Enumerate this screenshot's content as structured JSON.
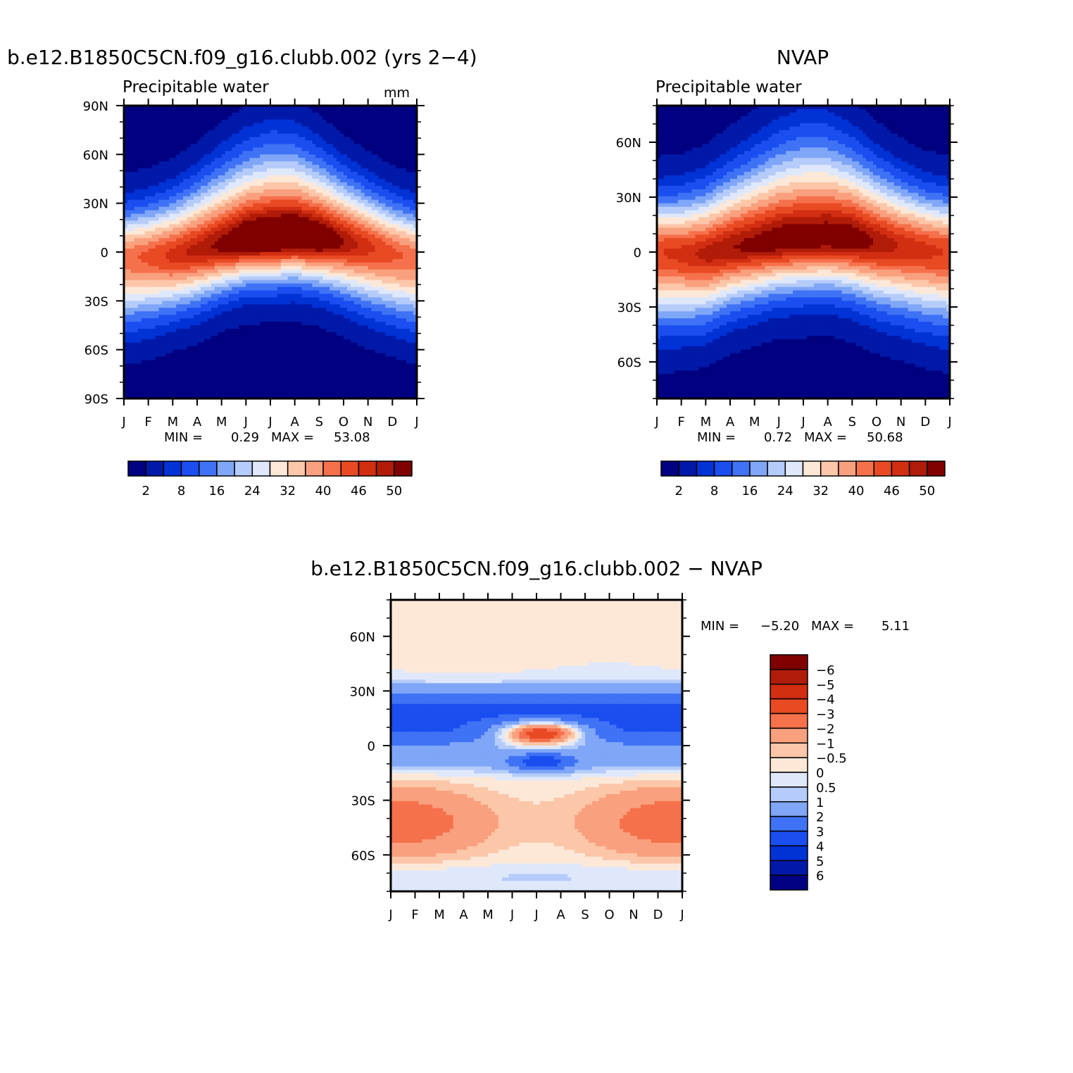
{
  "colors": {
    "precip_levels": [
      "#000080",
      "#0019a8",
      "#0032d6",
      "#1a4ef0",
      "#3f72f5",
      "#7fa6f7",
      "#b5ccfa",
      "#dfe8fb",
      "#fde8d8",
      "#fcc6a8",
      "#f9a07e",
      "#f5714c",
      "#e84a23",
      "#d22e12",
      "#b01c08",
      "#800000"
    ],
    "diff_levels": [
      "#000080",
      "#0019a8",
      "#0032d6",
      "#1a4ef0",
      "#3f72f5",
      "#7fa6f7",
      "#b5ccfa",
      "#dfe8fb",
      "#fde8d8",
      "#fcc6a8",
      "#f9a07e",
      "#f5714c",
      "#e84a23",
      "#d22e12",
      "#b01c08",
      "#800000"
    ]
  },
  "months": [
    "J",
    "F",
    "M",
    "A",
    "M",
    "J",
    "J",
    "A",
    "S",
    "O",
    "N",
    "D",
    "J"
  ],
  "chart_data": [
    {
      "type": "heatmap",
      "id": "model",
      "title": "b.e12.B1850C5CN.f09_g16.clubb.002 (yrs 2−4)",
      "subtitle": "Precipitable water",
      "units": "mm",
      "ylim": [
        -90,
        90
      ],
      "ytick_labels": [
        {
          "v": 90,
          "t": "90N"
        },
        {
          "v": 60,
          "t": "60N"
        },
        {
          "v": 30,
          "t": "30N"
        },
        {
          "v": 0,
          "t": "0"
        },
        {
          "v": -30,
          "t": "30S"
        },
        {
          "v": -60,
          "t": "60S"
        },
        {
          "v": -90,
          "t": "90S"
        }
      ],
      "min_max_text": {
        "min_label": "MIN =",
        "min": "0.29",
        "max_label": "MAX =",
        "max": "53.08"
      },
      "levels": [
        "2",
        "5",
        "8",
        "12",
        "16",
        "20",
        "24",
        "28",
        "32",
        "36",
        "40",
        "43",
        "46",
        "48",
        "50"
      ],
      "colorbar_labels": [
        "2",
        "8",
        "16",
        "24",
        "32",
        "40",
        "46",
        "50"
      ],
      "field": {
        "eq_lat": [
          -4,
          -3,
          -2,
          1,
          4,
          7,
          8,
          9,
          8,
          6,
          3,
          -1,
          -4
        ],
        "peak": [
          40,
          42,
          45,
          47,
          49,
          52,
          53,
          53,
          52,
          48,
          45,
          42,
          40
        ],
        "width_n": [
          18,
          19,
          21,
          24,
          28,
          31,
          33,
          32,
          28,
          24,
          21,
          19,
          18
        ],
        "width_s": [
          24,
          23,
          21,
          20,
          18,
          17,
          17,
          17,
          18,
          20,
          22,
          23,
          24
        ]
      }
    },
    {
      "type": "heatmap",
      "id": "obs",
      "title": "NVAP",
      "subtitle": "Precipitable water",
      "ylim": [
        -80,
        80
      ],
      "ytick_labels": [
        {
          "v": 60,
          "t": "60N"
        },
        {
          "v": 30,
          "t": "30N"
        },
        {
          "v": 0,
          "t": "0"
        },
        {
          "v": -30,
          "t": "30S"
        },
        {
          "v": -60,
          "t": "60S"
        }
      ],
      "min_max_text": {
        "min_label": "MIN =",
        "min": "0.72",
        "max_label": "MAX =",
        "max": "50.68"
      },
      "levels": [
        "2",
        "5",
        "8",
        "12",
        "16",
        "20",
        "24",
        "28",
        "32",
        "36",
        "40",
        "43",
        "46",
        "48",
        "50"
      ],
      "colorbar_labels": [
        "2",
        "8",
        "16",
        "24",
        "32",
        "40",
        "46",
        "50"
      ],
      "field": {
        "eq_lat": [
          0,
          -1,
          -1,
          2,
          4,
          6,
          7,
          8,
          7,
          5,
          3,
          1,
          0
        ],
        "peak": [
          44,
          45,
          47,
          48,
          49,
          50,
          50,
          50,
          50,
          48,
          46,
          45,
          44
        ],
        "width_n": [
          18,
          19,
          21,
          24,
          27,
          30,
          32,
          31,
          28,
          24,
          21,
          19,
          18
        ],
        "width_s": [
          24,
          23,
          22,
          20,
          19,
          18,
          18,
          18,
          19,
          21,
          22,
          23,
          24
        ]
      }
    },
    {
      "type": "heatmap",
      "id": "diff",
      "title": "b.e12.B1850C5CN.f09_g16.clubb.002 − NVAP",
      "ylim": [
        -80,
        80
      ],
      "ytick_labels": [
        {
          "v": 60,
          "t": "60N"
        },
        {
          "v": 30,
          "t": "30N"
        },
        {
          "v": 0,
          "t": "0"
        },
        {
          "v": -30,
          "t": "30S"
        },
        {
          "v": -60,
          "t": "60S"
        }
      ],
      "min_max_text": {
        "min_label": "MIN =",
        "min": "−5.20",
        "max_label": "MAX =",
        "max": "5.11"
      },
      "levels": [
        "−6",
        "−5",
        "−4",
        "−3",
        "−2",
        "−1",
        "−0.5",
        "0",
        "0.5",
        "1",
        "2",
        "3",
        "4",
        "5",
        "6"
      ],
      "level_values": [
        -6,
        -5,
        -4,
        -3,
        -2,
        -1,
        -0.5,
        0,
        0.5,
        1,
        2,
        3,
        4,
        5,
        6
      ]
    }
  ]
}
